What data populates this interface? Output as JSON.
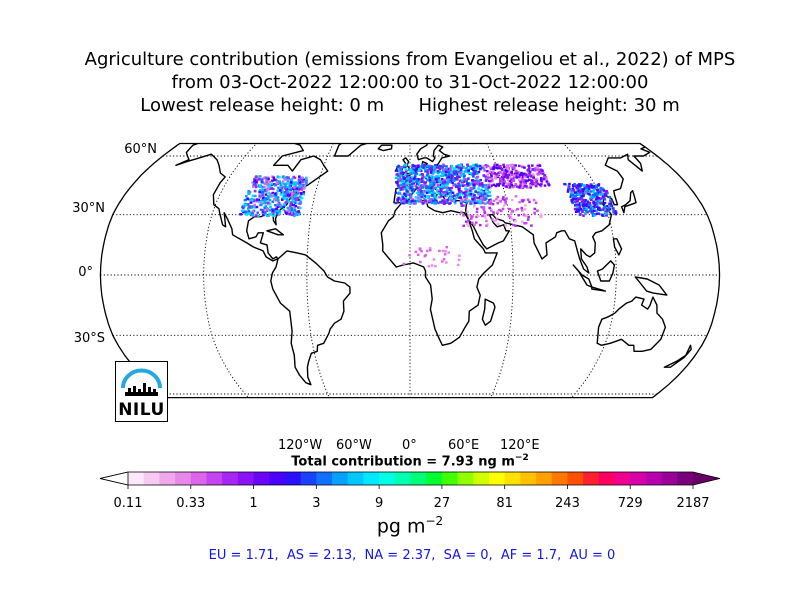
{
  "title": {
    "line1": "Agriculture contribution (emissions from Evangeliou et al., 2022) of MPS",
    "line2": "from 03-Oct-2022 12:00:00 to 31-Oct-2022 12:00:00",
    "line3": "Lowest release height: 0 m      Highest release height: 30 m"
  },
  "map": {
    "projection": "Robinson",
    "lat_labels": [
      "60°N",
      "30°N",
      "0°",
      "30°S"
    ],
    "lon_labels": [
      "120°W",
      "60°W",
      "0°",
      "60°E",
      "120°E"
    ]
  },
  "total": {
    "text": "Total contribution = 7.93 ng m",
    "exponent": "−2"
  },
  "colorbar": {
    "ticks": [
      "0.11",
      "0.33",
      "1",
      "3",
      "9",
      "27",
      "81",
      "243",
      "729",
      "2187"
    ],
    "units_base": "pg m",
    "units_exponent": "−2",
    "colors": [
      "#fde8fb",
      "#f7caf3",
      "#f0a8ec",
      "#e888e8",
      "#dc66ea",
      "#c544f0",
      "#a826f4",
      "#8a12f6",
      "#6a06f8",
      "#4a00fa",
      "#2a10fc",
      "#1c40ff",
      "#1070ff",
      "#08a0ff",
      "#00c8ff",
      "#00e8ff",
      "#00ffe4",
      "#00ffb0",
      "#00ff78",
      "#00ff30",
      "#40ff00",
      "#90ff00",
      "#d0ff00",
      "#ffff00",
      "#ffe000",
      "#ffc000",
      "#ffa000",
      "#ff7800",
      "#ff5000",
      "#ff2030",
      "#ff0060",
      "#f00090",
      "#d800a8",
      "#b800b0",
      "#980098",
      "#780078"
    ]
  },
  "regions": "EU = 1.71,  AS = 2.13,  NA = 2.37,  SA = 0,  AF = 1.7,  AU = 0",
  "logo": {
    "text": "NILU"
  }
}
